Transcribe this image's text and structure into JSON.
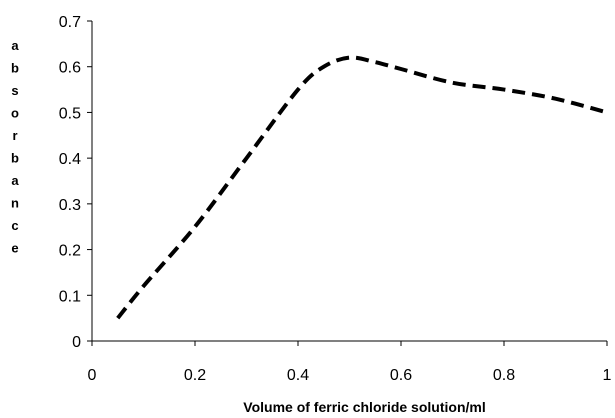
{
  "chart_data": {
    "type": "line",
    "title": "",
    "xlabel": "Volume of ferric chloride solution/ml",
    "ylabel": "absorbance",
    "xlim": [
      0,
      1
    ],
    "ylim": [
      0,
      0.7
    ],
    "x_ticks": [
      "0",
      "0.2",
      "0.4",
      "0.6",
      "0.8",
      "1"
    ],
    "y_ticks": [
      "0",
      "0.1",
      "0.2",
      "0.3",
      "0.4",
      "0.5",
      "0.6",
      "0.7"
    ],
    "grid": false,
    "legend": "none",
    "series": [
      {
        "line_style": "dashed",
        "color": "#000000",
        "x": [
          0.05,
          0.1,
          0.2,
          0.3,
          0.4,
          0.45,
          0.5,
          0.55,
          0.6,
          0.7,
          0.8,
          0.9,
          1.0
        ],
        "y": [
          0.05,
          0.12,
          0.25,
          0.4,
          0.55,
          0.6,
          0.62,
          0.61,
          0.595,
          0.565,
          0.55,
          0.53,
          0.5
        ]
      }
    ]
  }
}
